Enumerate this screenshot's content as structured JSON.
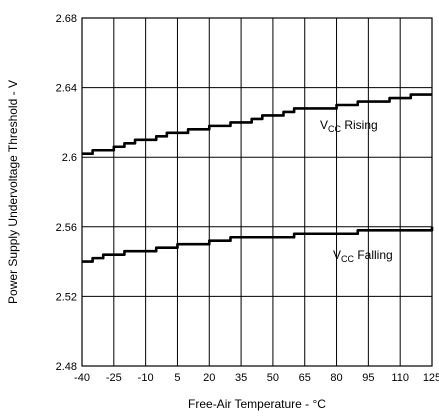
{
  "chart_data": {
    "type": "line",
    "xlabel": "Free-Air Temperature - °C",
    "ylabel": "Power Supply Undervoltage Threshold - V",
    "xlim": [
      -40,
      125
    ],
    "ylim": [
      2.48,
      2.68
    ],
    "x_ticks": [
      -40,
      -25,
      -10,
      5,
      20,
      35,
      50,
      65,
      80,
      95,
      110,
      125
    ],
    "y_ticks": [
      2.48,
      2.52,
      2.56,
      2.6,
      2.64,
      2.68
    ],
    "x_tick_labels": [
      "-40",
      "-25",
      "-10",
      "5",
      "20",
      "35",
      "50",
      "65",
      "80",
      "95",
      "110",
      "125"
    ],
    "y_tick_labels": [
      "2.48",
      "2.52",
      "2.56",
      "2.6",
      "2.64",
      "2.68"
    ],
    "grid": true,
    "series": [
      {
        "name_main": "V",
        "name_sub": "CC",
        "name_rest": " Rising",
        "x": [
          -40,
          -35,
          -30,
          -25,
          -20,
          -15,
          -10,
          -5,
          0,
          5,
          10,
          15,
          20,
          25,
          30,
          35,
          40,
          45,
          50,
          55,
          60,
          65,
          70,
          75,
          80,
          85,
          90,
          95,
          100,
          105,
          110,
          115,
          120,
          125
        ],
        "y": [
          2.602,
          2.604,
          2.604,
          2.606,
          2.608,
          2.61,
          2.61,
          2.612,
          2.614,
          2.614,
          2.616,
          2.616,
          2.618,
          2.618,
          2.62,
          2.62,
          2.622,
          2.624,
          2.624,
          2.626,
          2.628,
          2.628,
          2.628,
          2.628,
          2.63,
          2.63,
          2.632,
          2.632,
          2.632,
          2.634,
          2.634,
          2.636,
          2.636,
          2.636
        ]
      },
      {
        "name_main": "V",
        "name_sub": "CC",
        "name_rest": " Falling",
        "x": [
          -40,
          -35,
          -30,
          -25,
          -20,
          -15,
          -10,
          -5,
          0,
          5,
          10,
          15,
          20,
          25,
          30,
          35,
          40,
          45,
          50,
          55,
          60,
          65,
          70,
          75,
          80,
          85,
          90,
          95,
          100,
          105,
          110,
          115,
          120,
          125
        ],
        "y": [
          2.54,
          2.542,
          2.544,
          2.544,
          2.546,
          2.546,
          2.546,
          2.548,
          2.548,
          2.55,
          2.55,
          2.55,
          2.552,
          2.552,
          2.554,
          2.554,
          2.554,
          2.554,
          2.554,
          2.554,
          2.556,
          2.556,
          2.556,
          2.556,
          2.556,
          2.556,
          2.558,
          2.558,
          2.558,
          2.558,
          2.558,
          2.558,
          2.558,
          2.56
        ]
      }
    ]
  }
}
